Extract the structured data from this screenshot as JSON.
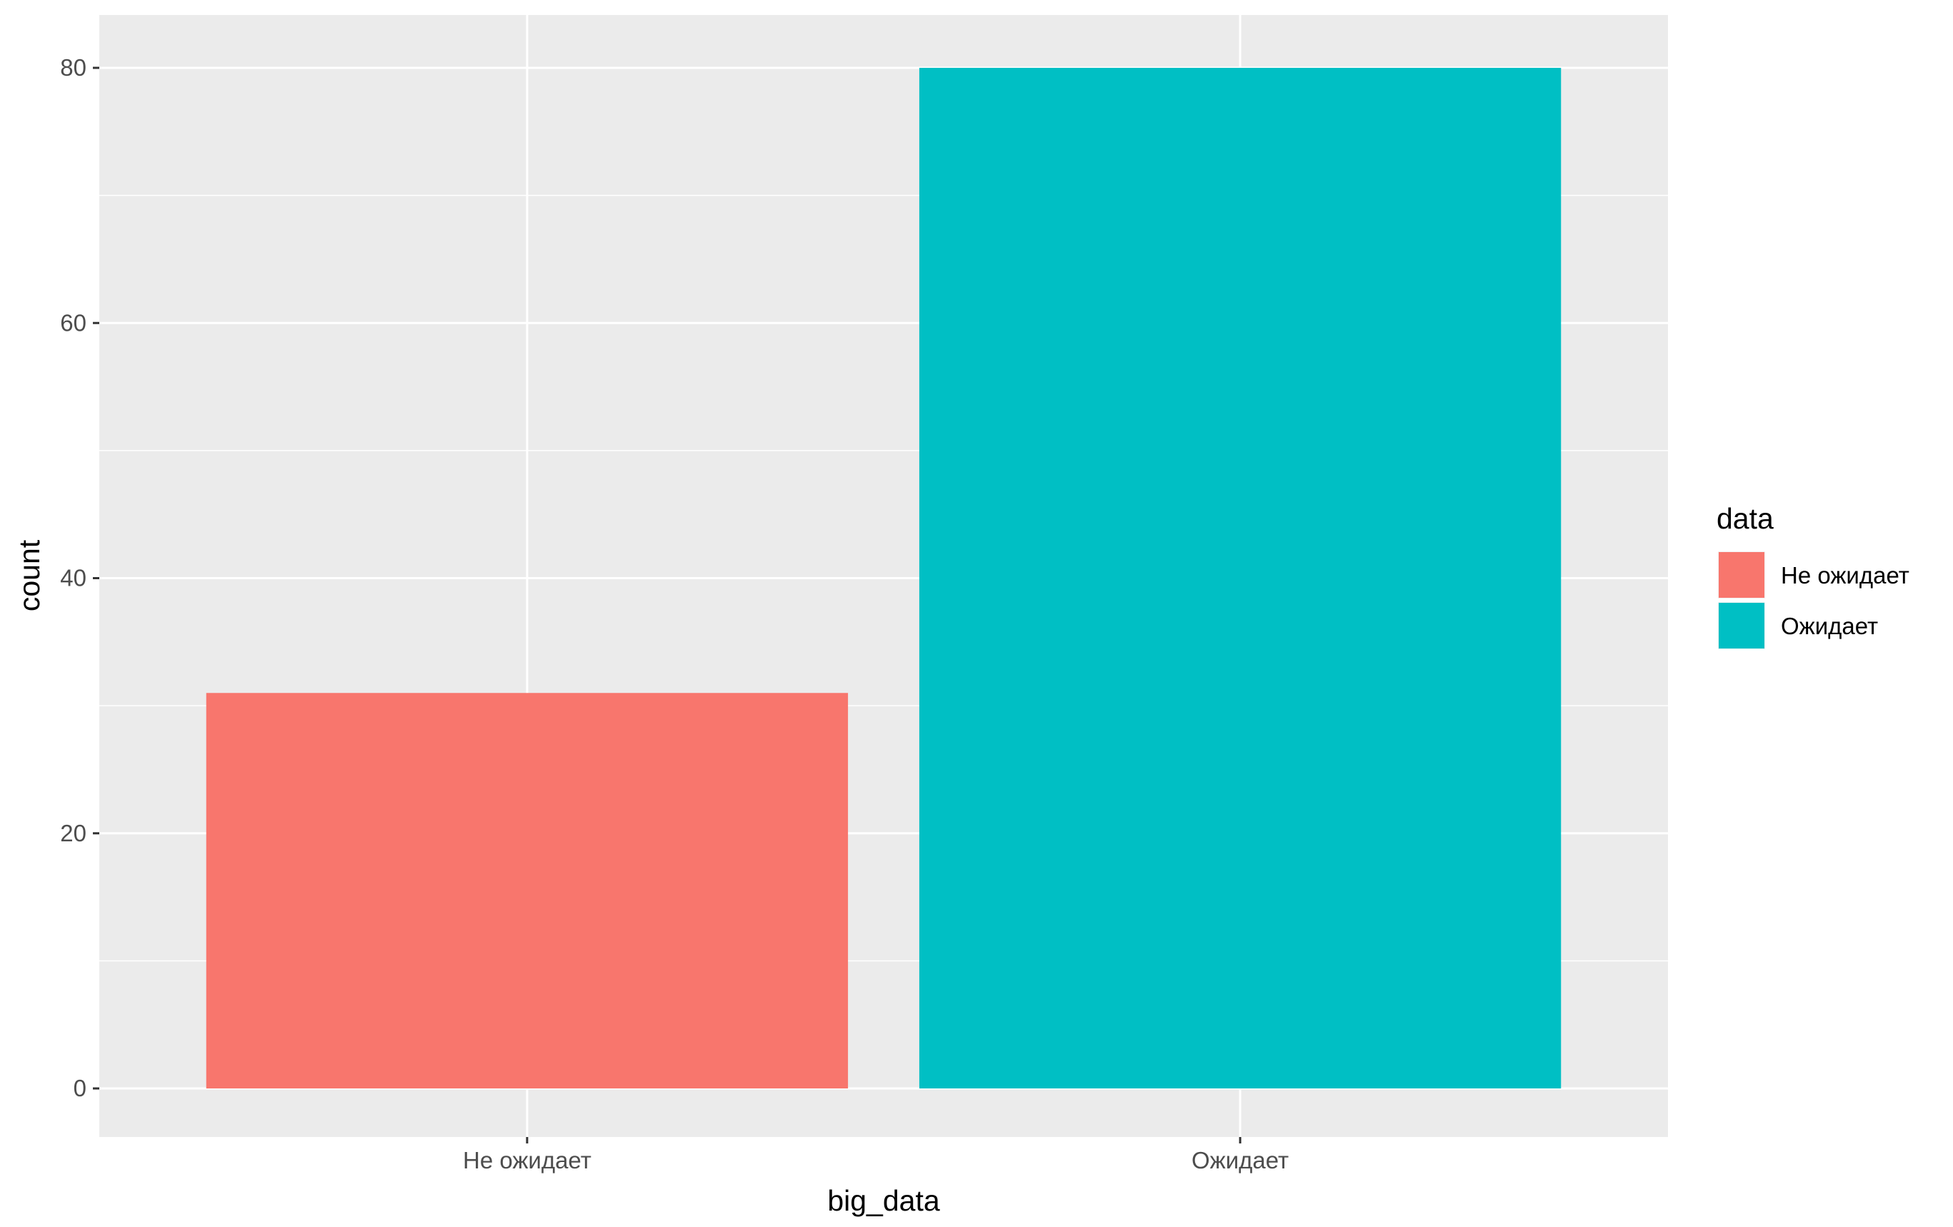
{
  "chart_data": {
    "type": "bar",
    "categories": [
      "Не ожидает",
      "Ожидает"
    ],
    "values": [
      31,
      80
    ],
    "bar_colors": [
      "#F8766D",
      "#00BFC4"
    ],
    "xlabel": "big_data",
    "ylabel": "count",
    "ylim": [
      0,
      84
    ],
    "y_ticks": [
      0,
      20,
      40,
      60,
      80
    ],
    "y_tick_labels": [
      "0",
      "20",
      "40",
      "60",
      "80"
    ],
    "y_minor_ticks": [
      10,
      30,
      50,
      70
    ],
    "grid": true,
    "panel_background": "#EBEBEB",
    "gridline_color": "#FFFFFF",
    "legend": {
      "title": "data",
      "placement": "right",
      "entries": [
        {
          "label": "Не ожидает",
          "color": "#F8766D"
        },
        {
          "label": "Ожидает",
          "color": "#00BFC4"
        }
      ]
    }
  }
}
